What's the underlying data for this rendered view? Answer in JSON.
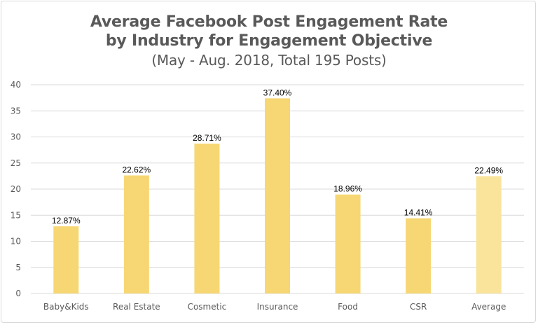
{
  "colors": {
    "bar": "#f7d774",
    "bar_highlight": "#fae49b",
    "grid": "#d9d9d9",
    "text": "#595959"
  },
  "chart_data": {
    "type": "bar",
    "title_line1": "Average Facebook Post Engagement Rate",
    "title_line2": "by Industry for Engagement Objective",
    "subtitle": "(May - Aug. 2018, Total 195 Posts)",
    "xlabel": "",
    "ylabel": "",
    "ylim": [
      0,
      40
    ],
    "yticks": [
      0,
      5,
      10,
      15,
      20,
      25,
      30,
      35,
      40
    ],
    "grid": true,
    "legend": "none",
    "categories": [
      "Baby&Kids",
      "Real Estate",
      "Cosmetic",
      "Insurance",
      "Food",
      "CSR",
      "Average"
    ],
    "values": [
      12.87,
      22.62,
      28.71,
      37.4,
      18.96,
      14.41,
      22.49
    ],
    "data_labels": [
      "12.87%",
      "22.62%",
      "28.71%",
      "37.40%",
      "18.96%",
      "14.41%",
      "22.49%"
    ],
    "highlight_category": "Average"
  }
}
